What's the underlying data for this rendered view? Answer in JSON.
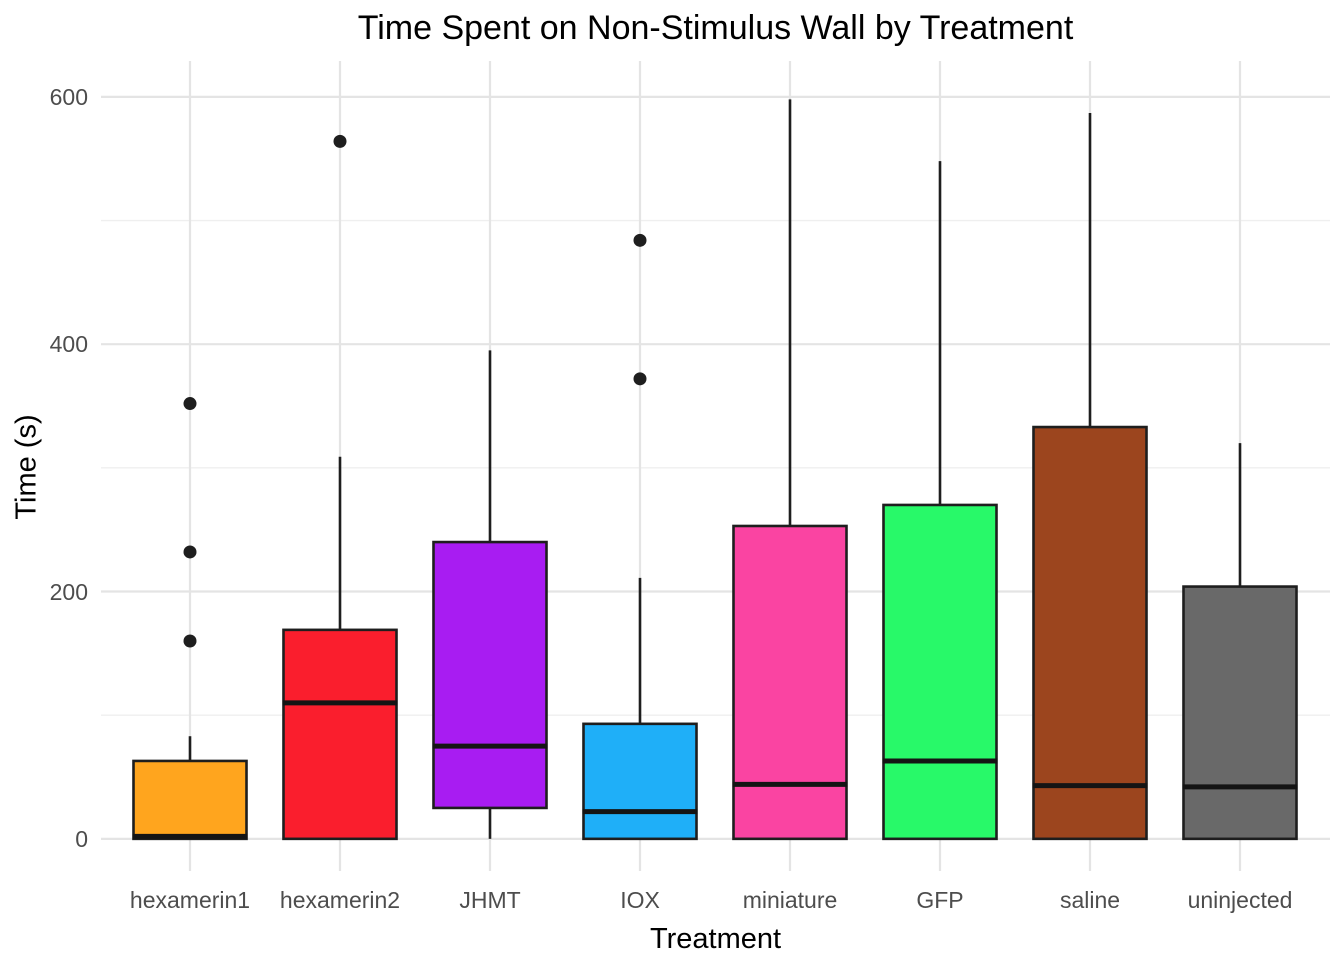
{
  "chart_data": {
    "type": "boxplot",
    "title": "Time Spent on Non-Stimulus Wall by Treatment",
    "xlabel": "Treatment",
    "ylabel": "Time (s)",
    "ylim": [
      -26,
      629
    ],
    "y_major_ticks": [
      0,
      200,
      400,
      600
    ],
    "y_minor_gridlines": [
      100,
      300,
      500
    ],
    "grid": "on",
    "legend": "none",
    "categories": [
      "hexamerin1",
      "hexamerin2",
      "JHMT",
      "IOX",
      "miniature",
      "GFP",
      "saline",
      "uninjected"
    ],
    "series": [
      {
        "name": "hexamerin1",
        "fill": "#FFA51E",
        "q1": 0,
        "median": 2,
        "q3": 63,
        "whisker_low": 0,
        "whisker_high": 83,
        "outliers": [
          160,
          232,
          352
        ]
      },
      {
        "name": "hexamerin2",
        "fill": "#FA1E2D",
        "q1": 0,
        "median": 110,
        "q3": 169,
        "whisker_low": 0,
        "whisker_high": 309,
        "outliers": [
          564
        ]
      },
      {
        "name": "JHMT",
        "fill": "#A81CF2",
        "q1": 25,
        "median": 75,
        "q3": 240,
        "whisker_low": 0,
        "whisker_high": 395,
        "outliers": []
      },
      {
        "name": "IOX",
        "fill": "#1FAFF8",
        "q1": 0,
        "median": 22,
        "q3": 93,
        "whisker_low": 0,
        "whisker_high": 211,
        "outliers": [
          372,
          484
        ]
      },
      {
        "name": "miniature",
        "fill": "#FA44A2",
        "q1": 0,
        "median": 44,
        "q3": 253,
        "whisker_low": 0,
        "whisker_high": 598,
        "outliers": []
      },
      {
        "name": "GFP",
        "fill": "#28F969",
        "q1": 0,
        "median": 63,
        "q3": 270,
        "whisker_low": 0,
        "whisker_high": 548,
        "outliers": []
      },
      {
        "name": "saline",
        "fill": "#9C451E",
        "q1": 0,
        "median": 43,
        "q3": 333,
        "whisker_low": 0,
        "whisker_high": 587,
        "outliers": []
      },
      {
        "name": "uninjected",
        "fill": "#696969",
        "q1": 0,
        "median": 42,
        "q3": 204,
        "whisker_low": 0,
        "whisker_high": 320,
        "outliers": []
      }
    ],
    "styles": {
      "background": "#FFFFFF",
      "grid_major_color": "#E4E4E4",
      "grid_minor_color": "#EFEFEF",
      "box_stroke_color": "#1E1E1E",
      "median_color": "#141414",
      "outlier_color": "#1E1E1E",
      "tick_label_color": "#4D4D4D",
      "title_color": "#000000"
    }
  }
}
